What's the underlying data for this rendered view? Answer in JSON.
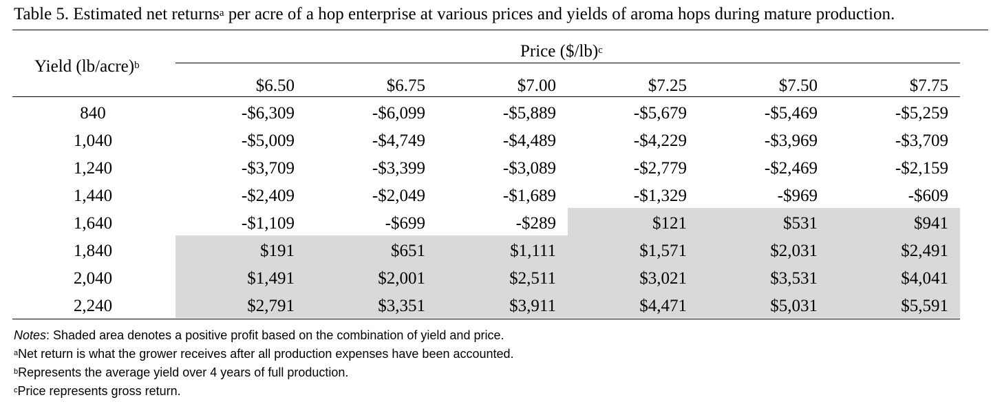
{
  "caption": {
    "before_sup": "Table 5. Estimated net returns",
    "sup": "a",
    "after_sup": " per acre of a hop enterprise at various prices and yields of aroma hops during mature production."
  },
  "header": {
    "yield_label": "Yield (lb/acre)",
    "yield_sup": "b",
    "price_label": "Price ($/lb)",
    "price_sup": "c"
  },
  "prices": [
    "$6.50",
    "$6.75",
    "$7.00",
    "$7.25",
    "$7.50",
    "$7.75"
  ],
  "rows": [
    {
      "yield": "840",
      "values": [
        "-$6,309",
        "-$6,099",
        "-$5,889",
        "-$5,679",
        "-$5,469",
        "-$5,259"
      ]
    },
    {
      "yield": "1,040",
      "values": [
        "-$5,009",
        "-$4,749",
        "-$4,489",
        "-$4,229",
        "-$3,969",
        "-$3,709"
      ]
    },
    {
      "yield": "1,240",
      "values": [
        "-$3,709",
        "-$3,399",
        "-$3,089",
        "-$2,779",
        "-$2,469",
        "-$2,159"
      ]
    },
    {
      "yield": "1,440",
      "values": [
        "-$2,409",
        "-$2,049",
        "-$1,689",
        "-$1,329",
        "-$969",
        "-$609"
      ]
    },
    {
      "yield": "1,640",
      "values": [
        "-$1,109",
        "-$699",
        "-$289",
        "$121",
        "$531",
        "$941"
      ]
    },
    {
      "yield": "1,840",
      "values": [
        "$191",
        "$651",
        "$1,111",
        "$1,571",
        "$2,031",
        "$2,491"
      ]
    },
    {
      "yield": "2,040",
      "values": [
        "$1,491",
        "$2,001",
        "$2,511",
        "$3,021",
        "$3,531",
        "$4,041"
      ]
    },
    {
      "yield": "2,240",
      "values": [
        "$2,791",
        "$3,351",
        "$3,911",
        "$4,471",
        "$5,031",
        "$5,591"
      ]
    }
  ],
  "shade_color": "#d9d9d9",
  "notes": {
    "notes_label": "Notes",
    "notes_text": ": Shaded area denotes a positive profit based on the combination of yield and price.",
    "a_sup": "a",
    "a_text": "Net return is what the grower receives after all production expenses have been accounted.",
    "b_sup": "b",
    "b_text": "Represents the average yield over 4 years of full production.",
    "c_sup": "c",
    "c_text": "Price represents gross return."
  }
}
